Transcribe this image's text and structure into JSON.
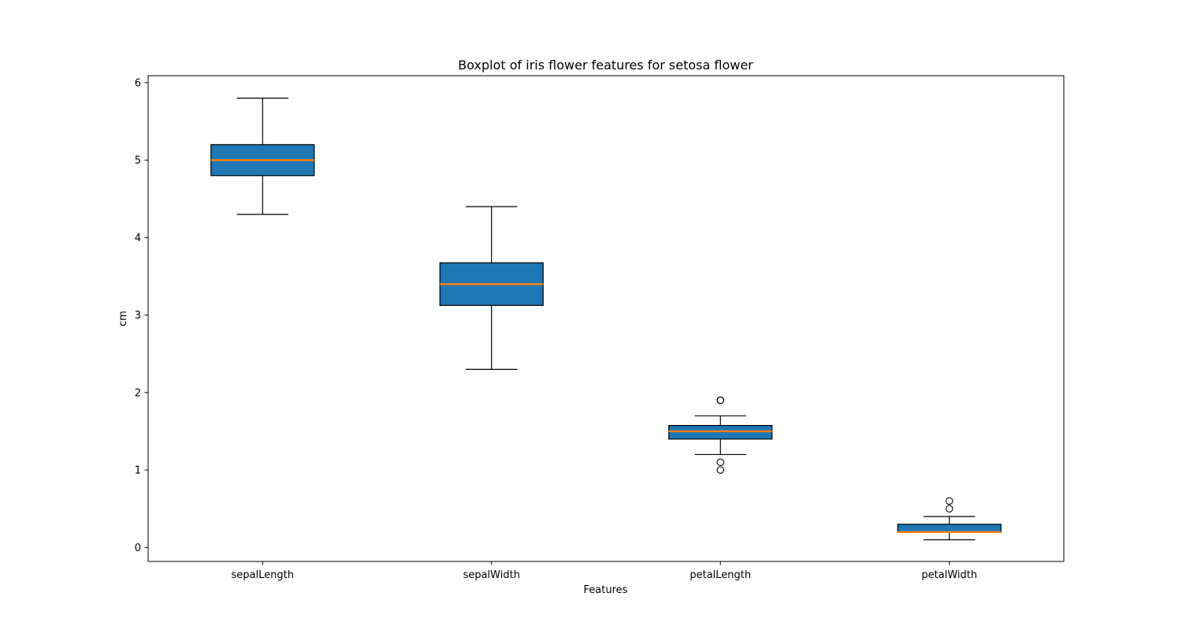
{
  "chart_data": {
    "type": "boxplot",
    "title": "Boxplot of iris flower features for setosa flower",
    "xlabel": "Features",
    "ylabel": "cm",
    "categories": [
      "sepalLength",
      "sepalWidth",
      "petalLength",
      "petalWidth"
    ],
    "ylim": [
      -0.18,
      6.09
    ],
    "yticks": [
      0,
      1,
      2,
      3,
      4,
      5,
      6
    ],
    "grid": false,
    "legend": "none",
    "boxes": [
      {
        "category": "sepalLength",
        "whisker_low": 4.3,
        "q1": 4.8,
        "median": 5.0,
        "q3": 5.2,
        "whisker_high": 5.8,
        "outliers": []
      },
      {
        "category": "sepalWidth",
        "whisker_low": 2.3,
        "q1": 3.125,
        "median": 3.4,
        "q3": 3.675,
        "whisker_high": 4.4,
        "outliers": []
      },
      {
        "category": "petalLength",
        "whisker_low": 1.2,
        "q1": 1.4,
        "median": 1.5,
        "q3": 1.575,
        "whisker_high": 1.7,
        "outliers": [
          1.0,
          1.1,
          1.9,
          1.9
        ]
      },
      {
        "category": "petalWidth",
        "whisker_low": 0.1,
        "q1": 0.2,
        "median": 0.2,
        "q3": 0.3,
        "whisker_high": 0.4,
        "outliers": [
          0.5,
          0.6
        ]
      }
    ],
    "colors": {
      "box_fill": "#1f77b4",
      "median": "#ff7f0e",
      "line": "#000000"
    }
  }
}
